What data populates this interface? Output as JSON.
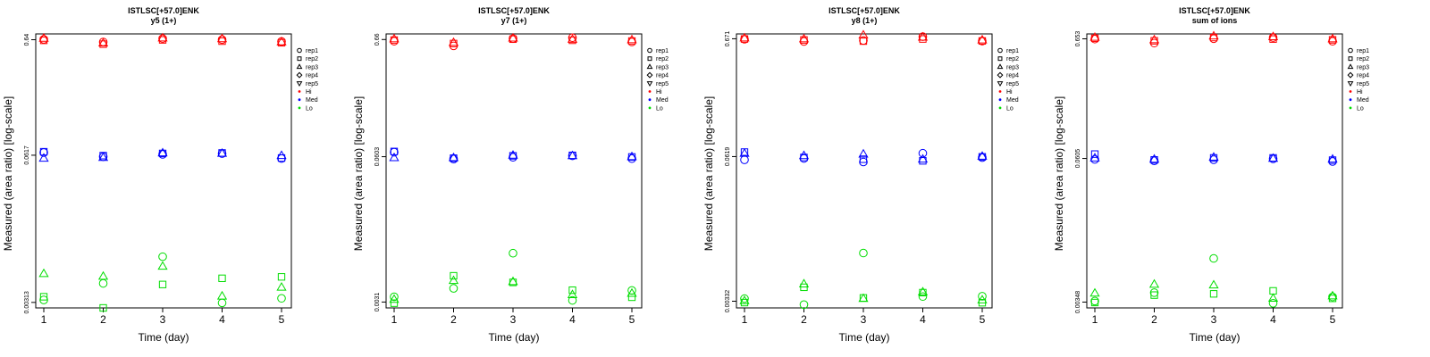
{
  "legend": {
    "replicates": [
      {
        "name": "rep1",
        "marker": "circle"
      },
      {
        "name": "rep2",
        "marker": "square"
      },
      {
        "name": "rep3",
        "marker": "triangle-up"
      },
      {
        "name": "rep4",
        "marker": "diamond"
      },
      {
        "name": "rep5",
        "marker": "triangle-down"
      }
    ],
    "levels": [
      {
        "name": "Hi",
        "color": "#ff0000"
      },
      {
        "name": "Med",
        "color": "#0000ff"
      },
      {
        "name": "Lo",
        "color": "#00dd00"
      }
    ]
  },
  "chart_data": [
    {
      "type": "scatter",
      "title": "ISTLSC[+57.0]ENK",
      "subtitle": "y5 (1+)",
      "xlabel": "Time (day)",
      "ylabel": "Measured (area ratio) [log-scale]",
      "y_scale": "log",
      "x_ticks": [
        "1",
        "2",
        "3",
        "4",
        "5"
      ],
      "y_ticks": [
        {
          "label": "0.64",
          "value": 0.64
        },
        {
          "label": "0.0617",
          "value": 0.0617
        },
        {
          "label": "0.00313",
          "value": 0.00313
        }
      ],
      "ylim": [
        0.0028,
        0.72
      ],
      "x": [
        1,
        2,
        3,
        4,
        5
      ],
      "series": [
        {
          "name": "rep1",
          "level": "Hi",
          "values": [
            0.645,
            0.612,
            0.655,
            0.642,
            0.618
          ]
        },
        {
          "name": "rep2",
          "level": "Hi",
          "values": [
            0.632,
            0.585,
            0.638,
            0.622,
            0.602
          ]
        },
        {
          "name": "rep3",
          "level": "Hi",
          "values": [
            0.658,
            0.598,
            0.662,
            0.652,
            0.612
          ]
        },
        {
          "name": "rep1",
          "level": "Med",
          "values": [
            0.0651,
            0.0598,
            0.0628,
            0.0638,
            0.0577
          ]
        },
        {
          "name": "rep2",
          "level": "Med",
          "values": [
            0.0662,
            0.0612,
            0.064,
            0.0646,
            0.0583
          ]
        },
        {
          "name": "rep3",
          "level": "Med",
          "values": [
            0.058,
            0.0588,
            0.0645,
            0.064,
            0.0612
          ]
        },
        {
          "name": "rep1",
          "level": "Lo",
          "values": [
            0.00329,
            0.0046,
            0.0079,
            0.0031,
            0.0034
          ]
        },
        {
          "name": "rep2",
          "level": "Lo",
          "values": [
            0.00351,
            0.0028,
            0.0045,
            0.0051,
            0.00525
          ]
        },
        {
          "name": "rep3",
          "level": "Lo",
          "values": [
            0.0056,
            0.0053,
            0.0065,
            0.00355,
            0.00425
          ]
        }
      ]
    },
    {
      "type": "scatter",
      "title": "ISTLSC[+57.0]ENK",
      "subtitle": "y7 (1+)",
      "xlabel": "Time (day)",
      "ylabel": "Measured (area ratio) [log-scale]",
      "y_scale": "log",
      "x_ticks": [
        "1",
        "2",
        "3",
        "4",
        "5"
      ],
      "y_ticks": [
        {
          "label": "0.66",
          "value": 0.66
        },
        {
          "label": "0.0603",
          "value": 0.0603
        },
        {
          "label": "0.0031",
          "value": 0.0031
        }
      ],
      "ylim": [
        0.00275,
        0.74
      ],
      "x": [
        1,
        2,
        3,
        4,
        5
      ],
      "series": [
        {
          "name": "rep1",
          "level": "Hi",
          "values": [
            0.638,
            0.58,
            0.672,
            0.685,
            0.628
          ]
        },
        {
          "name": "rep2",
          "level": "Hi",
          "values": [
            0.652,
            0.608,
            0.665,
            0.65,
            0.64
          ]
        },
        {
          "name": "rep3",
          "level": "Hi",
          "values": [
            0.668,
            0.62,
            0.678,
            0.662,
            0.655
          ]
        },
        {
          "name": "rep1",
          "level": "Med",
          "values": [
            0.0661,
            0.0575,
            0.0596,
            0.0614,
            0.058
          ]
        },
        {
          "name": "rep2",
          "level": "Med",
          "values": [
            0.0671,
            0.0585,
            0.0614,
            0.062,
            0.06
          ]
        },
        {
          "name": "rep3",
          "level": "Med",
          "values": [
            0.059,
            0.059,
            0.062,
            0.0614,
            0.0602
          ]
        },
        {
          "name": "rep1",
          "level": "Lo",
          "values": [
            0.00345,
            0.0041,
            0.0084,
            0.00321,
            0.00393
          ]
        },
        {
          "name": "rep2",
          "level": "Lo",
          "values": [
            0.00303,
            0.0053,
            0.00463,
            0.00395,
            0.00342
          ]
        },
        {
          "name": "rep3",
          "level": "Lo",
          "values": [
            0.00327,
            0.0048,
            0.0047,
            0.0036,
            0.0037
          ]
        }
      ]
    },
    {
      "type": "scatter",
      "title": "ISTLSC[+57.0]ENK",
      "subtitle": "y8 (1+)",
      "xlabel": "Time (day)",
      "ylabel": "Measured (area ratio) [log-scale]",
      "y_scale": "log",
      "x_ticks": [
        "1",
        "2",
        "3",
        "4",
        "5"
      ],
      "y_ticks": [
        {
          "label": "0.671",
          "value": 0.671
        },
        {
          "label": "0.0619",
          "value": 0.0619
        },
        {
          "label": "0.00332",
          "value": 0.00332
        }
      ],
      "ylim": [
        0.0029,
        0.74
      ],
      "x": [
        1,
        2,
        3,
        4,
        5
      ],
      "series": [
        {
          "name": "rep1",
          "level": "Hi",
          "values": [
            0.664,
            0.635,
            0.648,
            0.7,
            0.64
          ]
        },
        {
          "name": "rep2",
          "level": "Hi",
          "values": [
            0.668,
            0.655,
            0.64,
            0.668,
            0.642
          ]
        },
        {
          "name": "rep3",
          "level": "Hi",
          "values": [
            0.68,
            0.668,
            0.722,
            0.692,
            0.654
          ]
        },
        {
          "name": "rep1",
          "level": "Med",
          "values": [
            0.058,
            0.0596,
            0.0555,
            0.0662,
            0.0606
          ]
        },
        {
          "name": "rep2",
          "level": "Med",
          "values": [
            0.0678,
            0.0608,
            0.0587,
            0.0568,
            0.0616
          ]
        },
        {
          "name": "rep3",
          "level": "Med",
          "values": [
            0.066,
            0.063,
            0.065,
            0.0587,
            0.0622
          ]
        },
        {
          "name": "rep1",
          "level": "Lo",
          "values": [
            0.0035,
            0.0031,
            0.0088,
            0.00365,
            0.00367
          ]
        },
        {
          "name": "rep2",
          "level": "Lo",
          "values": [
            0.00323,
            0.0044,
            0.00355,
            0.00395,
            0.00322
          ]
        },
        {
          "name": "rep3",
          "level": "Lo",
          "values": [
            0.00335,
            0.0047,
            0.0035,
            0.004,
            0.0034
          ]
        }
      ]
    },
    {
      "type": "scatter",
      "title": "ISTLSC[+57.0]ENK",
      "subtitle": "sum of ions",
      "xlabel": "Time (day)",
      "ylabel": "Measured (area ratio) [log-scale]",
      "y_scale": "log",
      "x_ticks": [
        "1",
        "2",
        "3",
        "4",
        "5"
      ],
      "y_ticks": [
        {
          "label": "0.653",
          "value": 0.653
        },
        {
          "label": "0.0605",
          "value": 0.0605
        },
        {
          "label": "0.00348",
          "value": 0.00348
        }
      ],
      "ylim": [
        0.0031,
        0.72
      ],
      "x": [
        1,
        2,
        3,
        4,
        5
      ],
      "series": [
        {
          "name": "rep1",
          "level": "Hi",
          "values": [
            0.65,
            0.6,
            0.655,
            0.67,
            0.622
          ]
        },
        {
          "name": "rep2",
          "level": "Hi",
          "values": [
            0.66,
            0.628,
            0.67,
            0.65,
            0.64
          ]
        },
        {
          "name": "rep3",
          "level": "Hi",
          "values": [
            0.672,
            0.64,
            0.69,
            0.68,
            0.652
          ]
        },
        {
          "name": "rep1",
          "level": "Med",
          "values": [
            0.0594,
            0.0577,
            0.059,
            0.0601,
            0.057
          ]
        },
        {
          "name": "rep2",
          "level": "Med",
          "values": [
            0.066,
            0.0588,
            0.0612,
            0.0612,
            0.0585
          ]
        },
        {
          "name": "rep3",
          "level": "Med",
          "values": [
            0.061,
            0.0595,
            0.062,
            0.0605,
            0.0596
          ]
        },
        {
          "name": "rep1",
          "level": "Lo",
          "values": [
            0.00355,
            0.0042,
            0.0083,
            0.0034,
            0.00386
          ]
        },
        {
          "name": "rep2",
          "level": "Lo",
          "values": [
            0.00345,
            0.004,
            0.0041,
            0.00435,
            0.00375
          ]
        },
        {
          "name": "rep3",
          "level": "Lo",
          "values": [
            0.00415,
            0.00495,
            0.00488,
            0.00375,
            0.00393
          ]
        }
      ]
    }
  ]
}
